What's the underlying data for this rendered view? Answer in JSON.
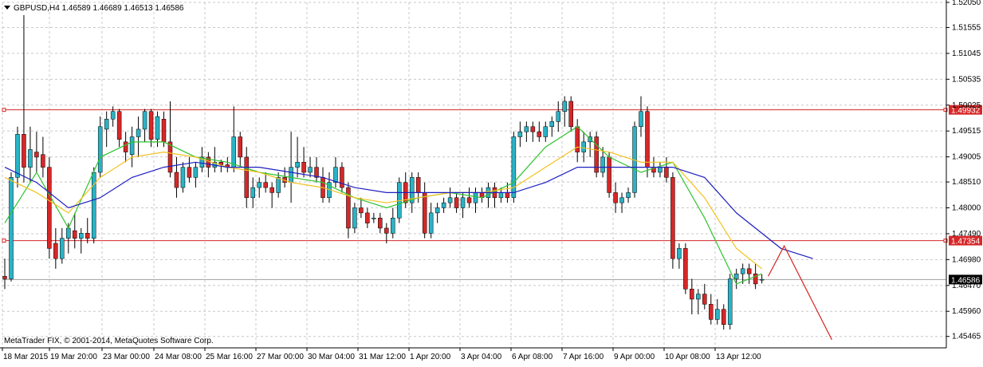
{
  "header": {
    "collapse_icon": "triangle-down-icon",
    "symbol_text": "GBPUSD,H4 1.46589 1.46689 1.46513 1.46586"
  },
  "footer": {
    "copyright": "MetaTrader FIX, © 2001-2014, MetaQuotes Software Corp."
  },
  "colors": {
    "background": "#ffffff",
    "grid": "#c8c8c8",
    "axis": "#000000",
    "bull_candle": "#2ab3c6",
    "bear_candle": "#d62728",
    "ma_fast": "#2ec42e",
    "ma_mid": "#f2c11c",
    "ma_slow": "#1f1fbf",
    "level_line": "#d62728",
    "current_price_label": "#000000"
  },
  "chart_data": {
    "type": "candlestick",
    "symbol": "GBPUSD",
    "timeframe": "H4",
    "ohlc_last": {
      "open": 1.46589,
      "high": 1.46689,
      "low": 1.46513,
      "close": 1.46586
    },
    "ylim": [
      1.4524,
      1.5205
    ],
    "grid": true,
    "price_axis_labels": [
      "1.52050",
      "1.51555",
      "1.51045",
      "1.50535",
      "1.50025",
      "1.49515",
      "1.49005",
      "1.48510",
      "1.48000",
      "1.47490",
      "1.46980",
      "1.46470",
      "1.45960",
      "1.45465"
    ],
    "time_axis_labels": [
      "18 Mar 2015",
      "19 Mar 20:00",
      "23 Mar 00:00",
      "24 Mar 08:00",
      "25 Mar 16:00",
      "27 Mar 00:00",
      "30 Mar 04:00",
      "31 Mar 12:00",
      "1 Apr 20:00",
      "3 Apr 04:00",
      "6 Apr 08:00",
      "7 Apr 16:00",
      "9 Apr 00:00",
      "10 Apr 08:00",
      "13 Apr 12:00"
    ],
    "candles": [
      [
        1.4665,
        1.47,
        1.464,
        1.466
      ],
      [
        1.466,
        1.487,
        1.4655,
        1.486
      ],
      [
        1.486,
        1.496,
        1.484,
        1.4945
      ],
      [
        1.4945,
        1.518,
        1.485,
        1.488
      ],
      [
        1.488,
        1.496,
        1.485,
        1.4915
      ],
      [
        1.491,
        1.495,
        1.487,
        1.49
      ],
      [
        1.4905,
        1.494,
        1.486,
        1.488
      ],
      [
        1.488,
        1.49,
        1.47,
        1.472
      ],
      [
        1.473,
        1.476,
        1.468,
        1.47
      ],
      [
        1.47,
        1.476,
        1.469,
        1.474
      ],
      [
        1.474,
        1.477,
        1.471,
        1.476
      ],
      [
        1.4755,
        1.479,
        1.472,
        1.474
      ],
      [
        1.474,
        1.476,
        1.471,
        1.475
      ],
      [
        1.475,
        1.478,
        1.473,
        1.474
      ],
      [
        1.474,
        1.488,
        1.473,
        1.487
      ],
      [
        1.487,
        1.498,
        1.486,
        1.496
      ],
      [
        1.4955,
        1.499,
        1.492,
        1.4975
      ],
      [
        1.4975,
        1.5,
        1.496,
        1.499
      ],
      [
        1.499,
        1.4995,
        1.492,
        1.4935
      ],
      [
        1.493,
        1.495,
        1.489,
        1.491
      ],
      [
        1.4905,
        1.496,
        1.488,
        1.494
      ],
      [
        1.494,
        1.498,
        1.49,
        1.4955
      ],
      [
        1.4955,
        1.4995,
        1.493,
        1.499
      ],
      [
        1.499,
        1.4995,
        1.492,
        1.4935
      ],
      [
        1.4935,
        1.499,
        1.492,
        1.498
      ],
      [
        1.4975,
        1.499,
        1.492,
        1.493
      ],
      [
        1.493,
        1.501,
        1.486,
        1.487
      ],
      [
        1.487,
        1.49,
        1.482,
        1.484
      ],
      [
        1.484,
        1.489,
        1.483,
        1.488
      ],
      [
        1.488,
        1.49,
        1.485,
        1.486
      ],
      [
        1.486,
        1.489,
        1.484,
        1.488
      ],
      [
        1.488,
        1.492,
        1.487,
        1.49
      ],
      [
        1.49,
        1.491,
        1.486,
        1.488
      ],
      [
        1.488,
        1.492,
        1.487,
        1.489
      ],
      [
        1.489,
        1.4895,
        1.487,
        1.4885
      ],
      [
        1.4885,
        1.49,
        1.487,
        1.488
      ],
      [
        1.488,
        1.5,
        1.487,
        1.494
      ],
      [
        1.494,
        1.495,
        1.488,
        1.49
      ],
      [
        1.49,
        1.492,
        1.48,
        1.482
      ],
      [
        1.482,
        1.486,
        1.48,
        1.484
      ],
      [
        1.484,
        1.486,
        1.482,
        1.485
      ],
      [
        1.485,
        1.487,
        1.483,
        1.484
      ],
      [
        1.484,
        1.485,
        1.48,
        1.483
      ],
      [
        1.483,
        1.487,
        1.482,
        1.486
      ],
      [
        1.486,
        1.488,
        1.484,
        1.485
      ],
      [
        1.485,
        1.495,
        1.481,
        1.488
      ],
      [
        1.488,
        1.494,
        1.486,
        1.489
      ],
      [
        1.489,
        1.492,
        1.486,
        1.487
      ],
      [
        1.487,
        1.49,
        1.486,
        1.488
      ],
      [
        1.488,
        1.49,
        1.485,
        1.486
      ],
      [
        1.486,
        1.488,
        1.481,
        1.482
      ],
      [
        1.482,
        1.487,
        1.481,
        1.485
      ],
      [
        1.485,
        1.49,
        1.484,
        1.488
      ],
      [
        1.488,
        1.489,
        1.483,
        1.484
      ],
      [
        1.484,
        1.485,
        1.474,
        1.476
      ],
      [
        1.476,
        1.481,
        1.475,
        1.48
      ],
      [
        1.48,
        1.482,
        1.478,
        1.479
      ],
      [
        1.479,
        1.48,
        1.476,
        1.477
      ],
      [
        1.478,
        1.479,
        1.477,
        1.478
      ],
      [
        1.478,
        1.479,
        1.475,
        1.476
      ],
      [
        1.476,
        1.477,
        1.473,
        1.475
      ],
      [
        1.475,
        1.48,
        1.474,
        1.478
      ],
      [
        1.478,
        1.486,
        1.477,
        1.485
      ],
      [
        1.485,
        1.487,
        1.48,
        1.481
      ],
      [
        1.481,
        1.487,
        1.479,
        1.486
      ],
      [
        1.486,
        1.487,
        1.481,
        1.483
      ],
      [
        1.483,
        1.485,
        1.474,
        1.475
      ],
      [
        1.475,
        1.481,
        1.474,
        1.479
      ],
      [
        1.479,
        1.481,
        1.477,
        1.48
      ],
      [
        1.48,
        1.482,
        1.479,
        1.481
      ],
      [
        1.481,
        1.484,
        1.48,
        1.482
      ],
      [
        1.482,
        1.483,
        1.479,
        1.48
      ],
      [
        1.48,
        1.483,
        1.478,
        1.482
      ],
      [
        1.482,
        1.484,
        1.48,
        1.481
      ],
      [
        1.481,
        1.484,
        1.479,
        1.483
      ],
      [
        1.483,
        1.484,
        1.481,
        1.482
      ],
      [
        1.482,
        1.485,
        1.48,
        1.484
      ],
      [
        1.484,
        1.485,
        1.48,
        1.482
      ],
      [
        1.482,
        1.484,
        1.481,
        1.483
      ],
      [
        1.483,
        1.485,
        1.481,
        1.482
      ],
      [
        1.482,
        1.495,
        1.481,
        1.494
      ],
      [
        1.494,
        1.497,
        1.492,
        1.495
      ],
      [
        1.495,
        1.497,
        1.493,
        1.496
      ],
      [
        1.496,
        1.497,
        1.493,
        1.495
      ],
      [
        1.495,
        1.497,
        1.493,
        1.494
      ],
      [
        1.494,
        1.497,
        1.493,
        1.496
      ],
      [
        1.496,
        1.498,
        1.494,
        1.497
      ],
      [
        1.497,
        1.501,
        1.495,
        1.499
      ],
      [
        1.499,
        1.502,
        1.496,
        1.501
      ],
      [
        1.501,
        1.502,
        1.495,
        1.496
      ],
      [
        1.496,
        1.4975,
        1.489,
        1.491
      ],
      [
        1.491,
        1.495,
        1.489,
        1.493
      ],
      [
        1.493,
        1.495,
        1.49,
        1.494
      ],
      [
        1.494,
        1.495,
        1.486,
        1.487
      ],
      [
        1.487,
        1.492,
        1.486,
        1.49
      ],
      [
        1.49,
        1.491,
        1.482,
        1.483
      ],
      [
        1.483,
        1.485,
        1.479,
        1.481
      ],
      [
        1.481,
        1.483,
        1.479,
        1.482
      ],
      [
        1.482,
        1.484,
        1.481,
        1.483
      ],
      [
        1.483,
        1.497,
        1.482,
        1.496
      ],
      [
        1.496,
        1.502,
        1.494,
        1.499
      ],
      [
        1.499,
        1.5,
        1.486,
        1.488
      ],
      [
        1.488,
        1.49,
        1.486,
        1.487
      ],
      [
        1.487,
        1.489,
        1.486,
        1.488
      ],
      [
        1.488,
        1.49,
        1.485,
        1.486
      ],
      [
        1.486,
        1.487,
        1.468,
        1.47
      ],
      [
        1.47,
        1.473,
        1.468,
        1.472
      ],
      [
        1.472,
        1.473,
        1.463,
        1.464
      ],
      [
        1.464,
        1.466,
        1.459,
        1.462
      ],
      [
        1.462,
        1.464,
        1.459,
        1.463
      ],
      [
        1.463,
        1.465,
        1.46,
        1.461
      ],
      [
        1.461,
        1.463,
        1.457,
        1.458
      ],
      [
        1.458,
        1.462,
        1.457,
        1.46
      ],
      [
        1.46,
        1.461,
        1.456,
        1.457
      ],
      [
        1.457,
        1.467,
        1.456,
        1.466
      ],
      [
        1.466,
        1.468,
        1.464,
        1.467
      ],
      [
        1.467,
        1.469,
        1.465,
        1.468
      ],
      [
        1.468,
        1.469,
        1.465,
        1.467
      ],
      [
        1.467,
        1.469,
        1.464,
        1.465
      ],
      [
        1.4659,
        1.4669,
        1.4651,
        1.4659
      ]
    ],
    "indicators": [
      {
        "type": "moving_average",
        "color": "#2ec42e",
        "points": [
          [
            0,
            1.477
          ],
          [
            5,
            1.487
          ],
          [
            10,
            1.476
          ],
          [
            15,
            1.49
          ],
          [
            20,
            1.493
          ],
          [
            25,
            1.493
          ],
          [
            30,
            1.49
          ],
          [
            35,
            1.489
          ],
          [
            40,
            1.487
          ],
          [
            45,
            1.486
          ],
          [
            50,
            1.485
          ],
          [
            55,
            1.482
          ],
          [
            60,
            1.48
          ],
          [
            65,
            1.482
          ],
          [
            70,
            1.483
          ],
          [
            75,
            1.482
          ],
          [
            80,
            1.485
          ],
          [
            85,
            1.492
          ],
          [
            90,
            1.496
          ],
          [
            95,
            1.49
          ],
          [
            100,
            1.487
          ],
          [
            105,
            1.489
          ],
          [
            110,
            1.478
          ],
          [
            115,
            1.465
          ],
          [
            119,
            1.467
          ]
        ]
      },
      {
        "type": "moving_average",
        "color": "#f2c11c",
        "points": [
          [
            0,
            1.486
          ],
          [
            5,
            1.483
          ],
          [
            10,
            1.479
          ],
          [
            15,
            1.486
          ],
          [
            20,
            1.49
          ],
          [
            25,
            1.491
          ],
          [
            30,
            1.49
          ],
          [
            35,
            1.488
          ],
          [
            40,
            1.487
          ],
          [
            45,
            1.485
          ],
          [
            50,
            1.484
          ],
          [
            55,
            1.482
          ],
          [
            60,
            1.481
          ],
          [
            65,
            1.482
          ],
          [
            70,
            1.483
          ],
          [
            75,
            1.483
          ],
          [
            80,
            1.484
          ],
          [
            85,
            1.488
          ],
          [
            90,
            1.492
          ],
          [
            95,
            1.491
          ],
          [
            100,
            1.489
          ],
          [
            105,
            1.489
          ],
          [
            110,
            1.482
          ],
          [
            115,
            1.472
          ],
          [
            119,
            1.468
          ]
        ]
      },
      {
        "type": "moving_average",
        "color": "#1f1fbf",
        "points": [
          [
            0,
            1.488
          ],
          [
            5,
            1.485
          ],
          [
            10,
            1.48
          ],
          [
            15,
            1.482
          ],
          [
            20,
            1.486
          ],
          [
            25,
            1.488
          ],
          [
            30,
            1.489
          ],
          [
            35,
            1.488
          ],
          [
            40,
            1.488
          ],
          [
            45,
            1.487
          ],
          [
            50,
            1.486
          ],
          [
            55,
            1.484
          ],
          [
            60,
            1.483
          ],
          [
            65,
            1.483
          ],
          [
            70,
            1.483
          ],
          [
            75,
            1.483
          ],
          [
            80,
            1.483
          ],
          [
            85,
            1.485
          ],
          [
            90,
            1.488
          ],
          [
            95,
            1.488
          ],
          [
            100,
            1.488
          ],
          [
            105,
            1.488
          ],
          [
            110,
            1.486
          ],
          [
            115,
            1.479
          ],
          [
            122,
            1.472
          ],
          [
            127,
            1.47
          ]
        ]
      }
    ],
    "horizontal_levels": [
      {
        "value": 1.49932,
        "label": "1.49932",
        "color": "#d62728"
      },
      {
        "value": 1.47354,
        "label": "1.47354",
        "color": "#d62728"
      }
    ],
    "current_price": {
      "value": 1.46586,
      "label": "1.46586"
    },
    "projection_line": {
      "color": "#d62728",
      "points": [
        [
          120,
          1.4665
        ],
        [
          122.5,
          1.4725
        ],
        [
          130,
          1.454
        ]
      ]
    }
  }
}
